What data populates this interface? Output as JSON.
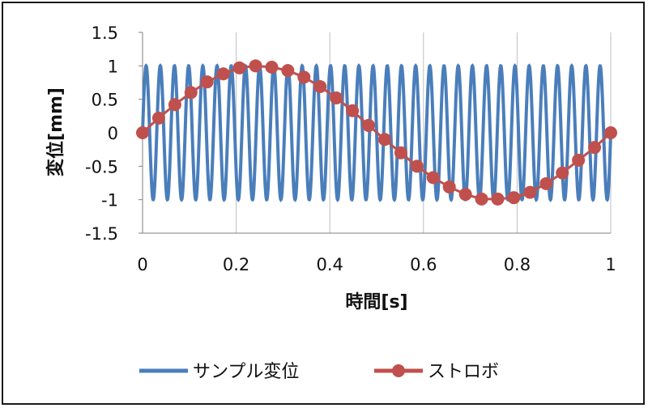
{
  "chart_data": {
    "type": "line",
    "xlabel": "時間[s]",
    "ylabel": "変位[mm]",
    "xlim": [
      0,
      1
    ],
    "ylim": [
      -1.5,
      1.5
    ],
    "x_ticks": [
      "0",
      "0.2",
      "0.4",
      "0.6",
      "0.8",
      "1"
    ],
    "y_ticks": [
      "1.5",
      "1",
      "0.5",
      "0",
      "-0.5",
      "-1",
      "-1.5"
    ],
    "grid": "vertical",
    "legend_position": "bottom",
    "series": [
      {
        "name": "サンプル変位",
        "style": "line",
        "color": "#4a7ebb",
        "amplitude": 1,
        "cycles_in_range": 33,
        "function": "sin"
      },
      {
        "name": "ストロボ",
        "style": "line-markers",
        "color": "#c0504d",
        "x": [
          0,
          0.0345,
          0.069,
          0.1034,
          0.1379,
          0.1724,
          0.2069,
          0.2414,
          0.2759,
          0.3103,
          0.3448,
          0.3793,
          0.4138,
          0.4483,
          0.4828,
          0.5172,
          0.5517,
          0.5862,
          0.6207,
          0.6552,
          0.6897,
          0.7241,
          0.7586,
          0.7931,
          0.8276,
          0.8621,
          0.8966,
          0.931,
          0.9655,
          1
        ],
        "y": [
          0,
          0.22,
          0.42,
          0.6,
          0.76,
          0.88,
          0.97,
          1.0,
          0.98,
          0.93,
          0.83,
          0.69,
          0.52,
          0.33,
          0.11,
          -0.1,
          -0.3,
          -0.5,
          -0.67,
          -0.81,
          -0.92,
          -0.99,
          -0.99,
          -0.97,
          -0.89,
          -0.76,
          -0.6,
          -0.41,
          -0.22,
          0
        ]
      }
    ]
  }
}
